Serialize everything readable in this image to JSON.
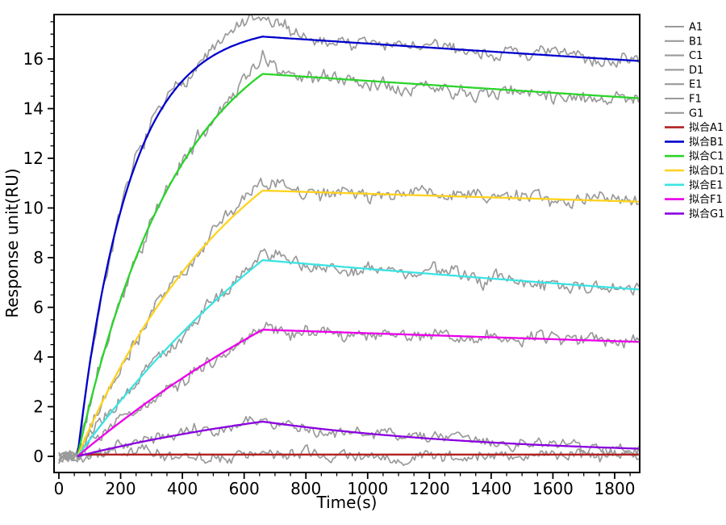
{
  "chart_data": {
    "type": "line",
    "title": "",
    "xlabel": "Time(s)",
    "ylabel": "Response unit(RU)",
    "xlim": [
      -16,
      1881
    ],
    "ylim": [
      -0.65,
      17.8
    ],
    "x_major_ticks": [
      0,
      200,
      400,
      600,
      800,
      1000,
      1200,
      1400,
      1600,
      1800
    ],
    "x_minor_step": 50,
    "y_major_ticks": [
      0,
      2,
      4,
      6,
      8,
      10,
      12,
      14,
      16
    ],
    "y_minor_step": 0.5,
    "grid": false,
    "legend_position": "right-outside",
    "association_start_s": 60,
    "association_end_s": 660,
    "trace_end_s": 1878,
    "sample_times": [
      0,
      100,
      200,
      300,
      400,
      500,
      600,
      700,
      800,
      900,
      1000,
      1100,
      1200,
      1300,
      1400,
      1500,
      1600,
      1700,
      1800,
      1900
    ],
    "fit_series": [
      {
        "name": "拟合A1",
        "color": "#B22222",
        "model": {
          "flat": 0.07,
          "t_on": 60
        },
        "samples": [
          0,
          0.07,
          0.07,
          0.07,
          0.07,
          0.07,
          0.07,
          0.07,
          0.07,
          0.07,
          0.07,
          0.07,
          0.07,
          0.07,
          0.07,
          0.07,
          0.07,
          0.07,
          0.07,
          0.07
        ]
      },
      {
        "name": "拟合B1",
        "color": "#0000CD",
        "model": {
          "t_on": 60,
          "t_off": 660,
          "k_obs": 0.006,
          "peak": 16.9,
          "kd": 4.9e-05
        },
        "samples": [
          0,
          3.71,
          9.87,
          13.25,
          15.11,
          16.12,
          16.68,
          16.87,
          16.78,
          16.7,
          16.62,
          16.54,
          16.46,
          16.38,
          16.3,
          16.22,
          16.14,
          16.06,
          15.98,
          15.9
        ]
      },
      {
        "name": "拟合C1",
        "color": "#2BD42B",
        "model": {
          "t_on": 60,
          "t_off": 660,
          "k_obs": 0.003,
          "peak": 15.4,
          "kd": 5.4e-05
        },
        "samples": [
          0,
          2.09,
          6.33,
          9.47,
          11.8,
          13.52,
          14.8,
          15.37,
          15.28,
          15.2,
          15.12,
          15.03,
          14.95,
          14.87,
          14.79,
          14.71,
          14.63,
          14.56,
          14.48,
          14.4
        ]
      },
      {
        "name": "拟合D1",
        "color": "#FFD21E",
        "model": {
          "t_on": 60,
          "t_off": 660,
          "k_obs": 0.0018,
          "peak": 10.7,
          "kd": 3.5e-05
        },
        "samples": [
          0,
          1.13,
          3.61,
          5.68,
          7.42,
          8.86,
          10.07,
          10.69,
          10.65,
          10.61,
          10.57,
          10.54,
          10.5,
          10.46,
          10.43,
          10.39,
          10.35,
          10.32,
          10.28,
          10.25
        ]
      },
      {
        "name": "拟合E1",
        "color": "#3CE3E3",
        "model": {
          "t_on": 60,
          "t_off": 660,
          "k_obs": 0.0009,
          "peak": 7.9,
          "kd": 0.000133
        },
        "samples": [
          0,
          0.67,
          2.24,
          3.67,
          4.99,
          6.19,
          7.29,
          7.86,
          7.75,
          7.65,
          7.55,
          7.45,
          7.35,
          7.26,
          7.16,
          7.06,
          6.97,
          6.88,
          6.79,
          6.7
        ]
      },
      {
        "name": "拟合F1",
        "color": "#EA00EA",
        "model": {
          "t_on": 60,
          "t_off": 660,
          "k_obs": 0.0007,
          "peak": 5.1,
          "kd": 8.3e-05
        },
        "samples": [
          0,
          0.41,
          1.39,
          2.3,
          3.15,
          3.94,
          4.68,
          5.08,
          5.04,
          5.0,
          4.96,
          4.92,
          4.88,
          4.84,
          4.8,
          4.76,
          4.72,
          4.68,
          4.64,
          4.6
        ]
      },
      {
        "name": "拟合G1",
        "color": "#8A00E0",
        "model": {
          "t_on": 60,
          "t_off": 660,
          "k_obs": 0.001,
          "peak": 1.4,
          "kd": 0.00124
        },
        "samples": [
          0,
          0.12,
          0.41,
          0.66,
          0.89,
          1.1,
          1.29,
          1.33,
          1.18,
          1.04,
          0.92,
          0.81,
          0.72,
          0.63,
          0.56,
          0.49,
          0.44,
          0.39,
          0.34,
          0.3
        ]
      }
    ],
    "raw_series": [
      {
        "name": "A1",
        "color": "#9A9A9A",
        "follows": "拟合A1",
        "flat": 0.02,
        "noise_amp": 0.34,
        "seed": 3,
        "bump": null
      },
      {
        "name": "B1",
        "color": "#9A9A9A",
        "follows": "拟合B1",
        "noise_amp": 0.4,
        "seed": 7,
        "bump": {
          "amp": 0.72,
          "center": 625,
          "sigma": 115
        }
      },
      {
        "name": "C1",
        "color": "#9A9A9A",
        "follows": "拟合C1",
        "noise_amp": 0.4,
        "seed": 11,
        "bump": {
          "amp": 0.55,
          "center": 648,
          "sigma": 105
        }
      },
      {
        "name": "D1",
        "color": "#9A9A9A",
        "follows": "拟合D1",
        "noise_amp": 0.38,
        "seed": 19,
        "bump": {
          "amp": 0.33,
          "center": 635,
          "sigma": 90
        }
      },
      {
        "name": "E1",
        "color": "#9A9A9A",
        "follows": "拟合E1",
        "noise_amp": 0.38,
        "seed": 23,
        "bump": {
          "amp": 0.22,
          "center": 645,
          "sigma": 85
        }
      },
      {
        "name": "F1",
        "color": "#9A9A9A",
        "follows": "拟合F1",
        "noise_amp": 0.36,
        "seed": 31,
        "bump": {
          "amp": 0.12,
          "center": 640,
          "sigma": 80
        }
      },
      {
        "name": "G1",
        "color": "#9A9A9A",
        "follows": "拟合G1",
        "noise_amp": 0.32,
        "seed": 41,
        "bump": null
      }
    ],
    "legend": {
      "items": [
        {
          "label": "A1",
          "color": "#9A9A9A",
          "kind": "raw"
        },
        {
          "label": "B1",
          "color": "#9A9A9A",
          "kind": "raw"
        },
        {
          "label": "C1",
          "color": "#9A9A9A",
          "kind": "raw"
        },
        {
          "label": "D1",
          "color": "#9A9A9A",
          "kind": "raw"
        },
        {
          "label": "E1",
          "color": "#9A9A9A",
          "kind": "raw"
        },
        {
          "label": "F1",
          "color": "#9A9A9A",
          "kind": "raw"
        },
        {
          "label": "G1",
          "color": "#9A9A9A",
          "kind": "raw"
        },
        {
          "label": "拟合A1",
          "color": "#B22222",
          "kind": "fit"
        },
        {
          "label": "拟合B1",
          "color": "#0000CD",
          "kind": "fit"
        },
        {
          "label": "拟合C1",
          "color": "#2BD42B",
          "kind": "fit"
        },
        {
          "label": "拟合D1",
          "color": "#FFD21E",
          "kind": "fit"
        },
        {
          "label": "拟合E1",
          "color": "#3CE3E3",
          "kind": "fit"
        },
        {
          "label": "拟合F1",
          "color": "#EA00EA",
          "kind": "fit"
        },
        {
          "label": "拟合G1",
          "color": "#8A00E0",
          "kind": "fit"
        }
      ]
    },
    "colors": {
      "frame": "#000000",
      "text": "#000000",
      "raw_gray": "#9A9A9A",
      "background": "#ffffff"
    }
  }
}
